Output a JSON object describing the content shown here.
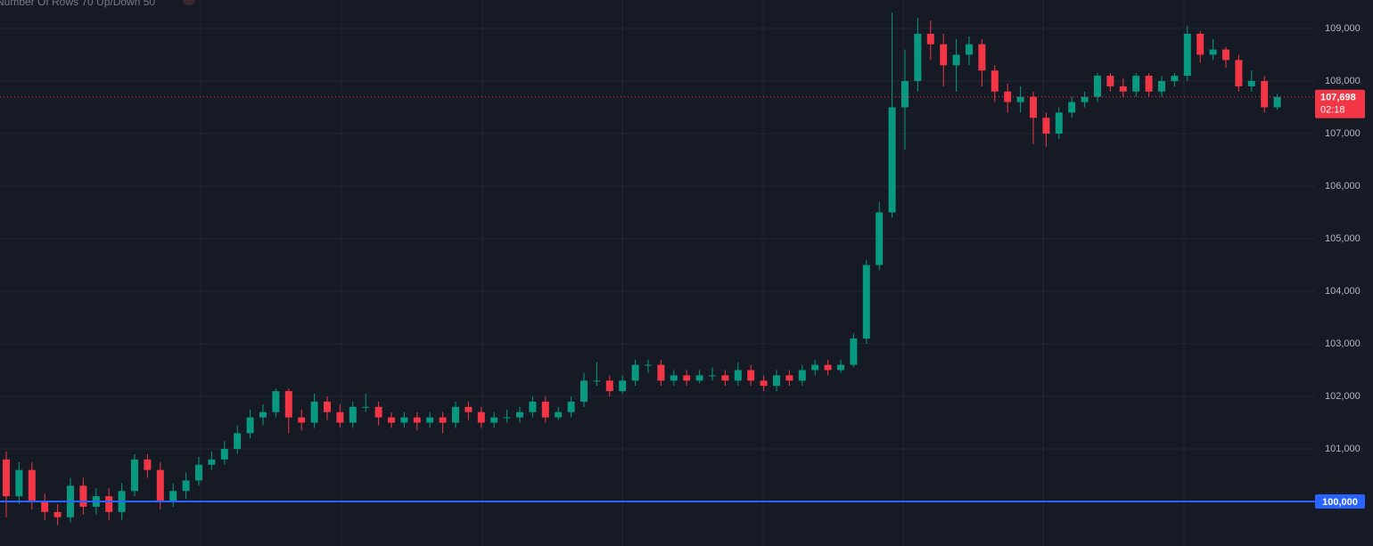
{
  "chart_data": {
    "type": "candlestick",
    "title": "Number Of Rows 70 Up/Down 50",
    "ylim": [
      99153,
      109542
    ],
    "yticks": [
      {
        "value": 100000,
        "label": "100,000"
      },
      {
        "value": 101000,
        "label": "101,000"
      },
      {
        "value": 102000,
        "label": "102,000"
      },
      {
        "value": 103000,
        "label": "103,000"
      },
      {
        "value": 104000,
        "label": "104,000"
      },
      {
        "value": 105000,
        "label": "105,000"
      },
      {
        "value": 106000,
        "label": "106,000"
      },
      {
        "value": 107000,
        "label": "107,000"
      },
      {
        "value": 108000,
        "label": "108,000"
      },
      {
        "value": 109000,
        "label": "109,000"
      }
    ],
    "grid": true,
    "up_color": "#089981",
    "down_color": "#f23645",
    "open": [
      100800,
      100100,
      100600,
      100000,
      99800,
      99700,
      100300,
      99900,
      100100,
      99800,
      100200,
      100800,
      100600,
      100000,
      100200,
      100400,
      100700,
      100800,
      101000,
      101300,
      101600,
      101700,
      102100,
      101600,
      101500,
      101900,
      101700,
      101500,
      101800,
      101800,
      101600,
      101500,
      101600,
      101500,
      101600,
      101500,
      101800,
      101700,
      101500,
      101600,
      101600,
      101700,
      101900,
      101600,
      101700,
      101900,
      102300,
      102300,
      102100,
      102300,
      102600,
      102600,
      102300,
      102400,
      102300,
      102400,
      102400,
      102300,
      102500,
      102300,
      102200,
      102400,
      102300,
      102500,
      102600,
      102500,
      102600,
      103100,
      104500,
      105500,
      107500,
      108000,
      108900,
      108700,
      108300,
      108500,
      108700,
      108200,
      107800,
      107600,
      107700,
      107300,
      107000,
      107400,
      107600,
      107700,
      108100,
      107900,
      107800,
      108100,
      107800,
      108000,
      108100,
      108900,
      108500,
      108600,
      108400,
      107900,
      108000,
      107500
    ],
    "high": [
      100950,
      100750,
      100750,
      100150,
      99950,
      100450,
      100450,
      100250,
      100250,
      100350,
      100900,
      100900,
      100750,
      100350,
      100550,
      100850,
      100950,
      101150,
      101450,
      101750,
      101850,
      102150,
      102150,
      101750,
      102050,
      102000,
      101850,
      101900,
      102050,
      101900,
      101700,
      101700,
      101700,
      101700,
      101700,
      101900,
      101900,
      101800,
      101700,
      101750,
      101800,
      102000,
      102000,
      101800,
      102000,
      102450,
      102650,
      102400,
      102400,
      102700,
      102700,
      102700,
      102500,
      102500,
      102500,
      102550,
      102500,
      102650,
      102600,
      102400,
      102500,
      102500,
      102600,
      102700,
      102700,
      102700,
      103200,
      104600,
      105700,
      109300,
      108600,
      109200,
      109150,
      108900,
      108800,
      108850,
      108800,
      108300,
      107950,
      107900,
      107800,
      107400,
      107500,
      107700,
      107800,
      108150,
      108150,
      108050,
      108150,
      108150,
      108100,
      108150,
      109050,
      108950,
      108800,
      108650,
      108500,
      108200,
      108100,
      107750
    ],
    "low": [
      99700,
      99950,
      99850,
      99650,
      99550,
      99600,
      99750,
      99750,
      99650,
      99650,
      100100,
      100450,
      99850,
      99900,
      100050,
      100300,
      100600,
      100700,
      100900,
      101200,
      101450,
      101600,
      101300,
      101350,
      101400,
      101550,
      101400,
      101400,
      101700,
      101450,
      101400,
      101400,
      101350,
      101400,
      101300,
      101400,
      101550,
      101400,
      101400,
      101500,
      101500,
      101600,
      101500,
      101550,
      101600,
      101800,
      102200,
      102000,
      102050,
      102200,
      102450,
      102200,
      102200,
      102200,
      102250,
      102300,
      102200,
      102200,
      102200,
      102100,
      102100,
      102200,
      102200,
      102400,
      102400,
      102450,
      102550,
      103000,
      104400,
      105400,
      106700,
      107800,
      108400,
      107900,
      107800,
      108300,
      107900,
      107600,
      107400,
      107400,
      106800,
      106750,
      106900,
      107300,
      107500,
      107600,
      107800,
      107700,
      107700,
      107700,
      107700,
      107900,
      108000,
      108350,
      108400,
      108250,
      107800,
      107800,
      107400,
      107450
    ],
    "close": [
      100100,
      100600,
      100000,
      99800,
      99700,
      100300,
      99900,
      100100,
      99800,
      100200,
      100800,
      100600,
      100000,
      100200,
      100400,
      100700,
      100800,
      101000,
      101300,
      101600,
      101700,
      102100,
      101600,
      101500,
      101900,
      101700,
      101500,
      101800,
      101800,
      101600,
      101500,
      101600,
      101500,
      101600,
      101500,
      101800,
      101700,
      101500,
      101600,
      101600,
      101700,
      101900,
      101600,
      101700,
      101900,
      102300,
      102300,
      102100,
      102300,
      102600,
      102600,
      102300,
      102400,
      102300,
      102400,
      102400,
      102300,
      102500,
      102300,
      102200,
      102400,
      102300,
      102500,
      102600,
      102500,
      102600,
      103100,
      104500,
      105500,
      107500,
      108000,
      108900,
      108700,
      108300,
      108500,
      108700,
      108200,
      107800,
      107600,
      107700,
      107300,
      107000,
      107400,
      107600,
      107700,
      108100,
      107900,
      107800,
      108100,
      107800,
      108000,
      108100,
      108900,
      108500,
      108600,
      108400,
      107900,
      108000,
      107500,
      107698
    ],
    "last_price": {
      "value": 107698,
      "label": "107,698",
      "countdown": "02:18",
      "color": "#f23645"
    },
    "hline": {
      "value": 100000,
      "label": "100,000",
      "color": "#2962ff"
    }
  }
}
